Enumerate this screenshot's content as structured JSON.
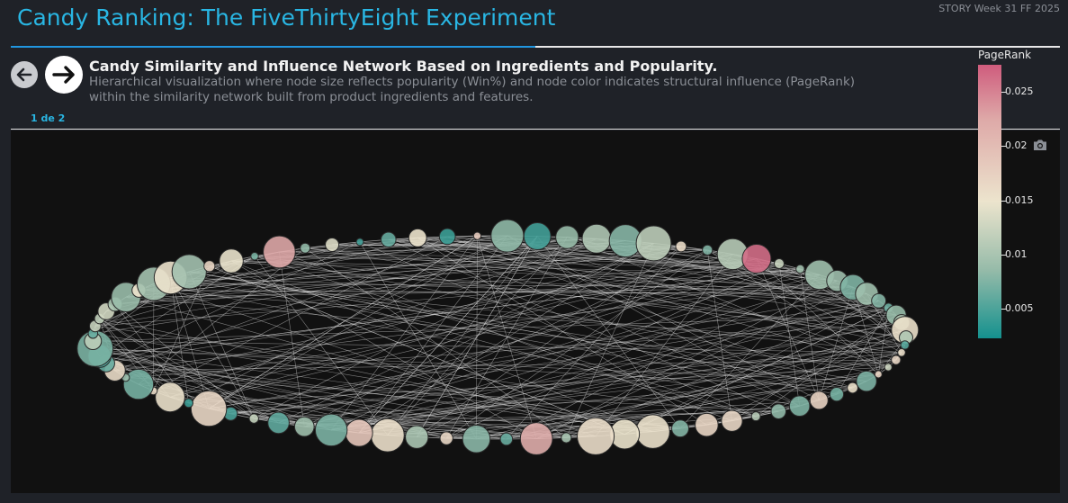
{
  "header": {
    "title": "Candy Ranking: The FiveThirtyEight Experiment",
    "story_label": "STORY Week 31 FF 2025"
  },
  "story_point": {
    "title": "Candy Similarity and Influence Network Based on Ingredients and Popularity.",
    "description": "Hierarchical visualization where node size reflects popularity (Win%) and node color indicates structural influence (PageRank) within the similarity network built from product ingredients and features.",
    "pager": "1 de 2"
  },
  "icons": {
    "back": "arrow-left-icon",
    "next": "arrow-right-icon",
    "camera": "camera-icon"
  },
  "colors": {
    "accent": "#29b6e3",
    "scale_high": "#cf5c7d",
    "scale_mid": "#ece4cd",
    "scale_low": "#14918e",
    "edges": "#d8d8d8",
    "background": "#111111"
  },
  "chart_data": {
    "type": "network",
    "layout": "circular",
    "node_size": "popularity (Win%)",
    "node_color": "PageRank",
    "colorbar": {
      "title": "PageRank",
      "ticks": [
        "0.025",
        "0.02",
        "0.015",
        "0.01",
        "0.005"
      ],
      "tick_values": [
        0.025,
        0.02,
        0.015,
        0.01,
        0.005
      ],
      "range": [
        0.0023,
        0.0275
      ]
    },
    "node_count": 85,
    "legend_placement": "right"
  }
}
